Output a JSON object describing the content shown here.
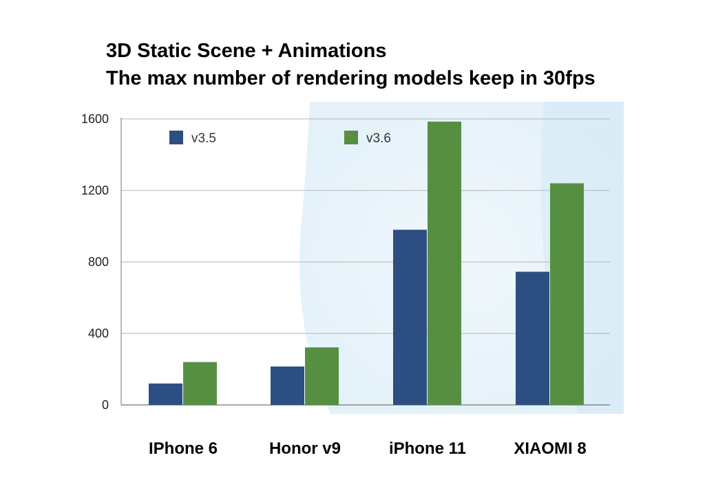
{
  "title_line1": "3D Static Scene + Animations",
  "title_line2": "The max number of rendering models keep in 30fps",
  "chart_data": {
    "type": "bar",
    "title": "3D Static Scene + Animations\nThe max number of rendering models keep in 30fps",
    "categories": [
      "IPhone 6",
      "Honor v9",
      "iPhone 11",
      "XIAOMI 8"
    ],
    "series": [
      {
        "name": "v3.5",
        "color": "#2c4e82",
        "values": [
          120,
          215,
          980,
          745
        ]
      },
      {
        "name": "v3.6",
        "color": "#568f42",
        "values": [
          240,
          322,
          1585,
          1240
        ]
      }
    ],
    "yticks": [
      0,
      400,
      800,
      1200,
      1600
    ],
    "ylim": [
      0,
      1600
    ],
    "grid": true,
    "legend_position": "top",
    "background_accent": "#e6f2fa"
  }
}
